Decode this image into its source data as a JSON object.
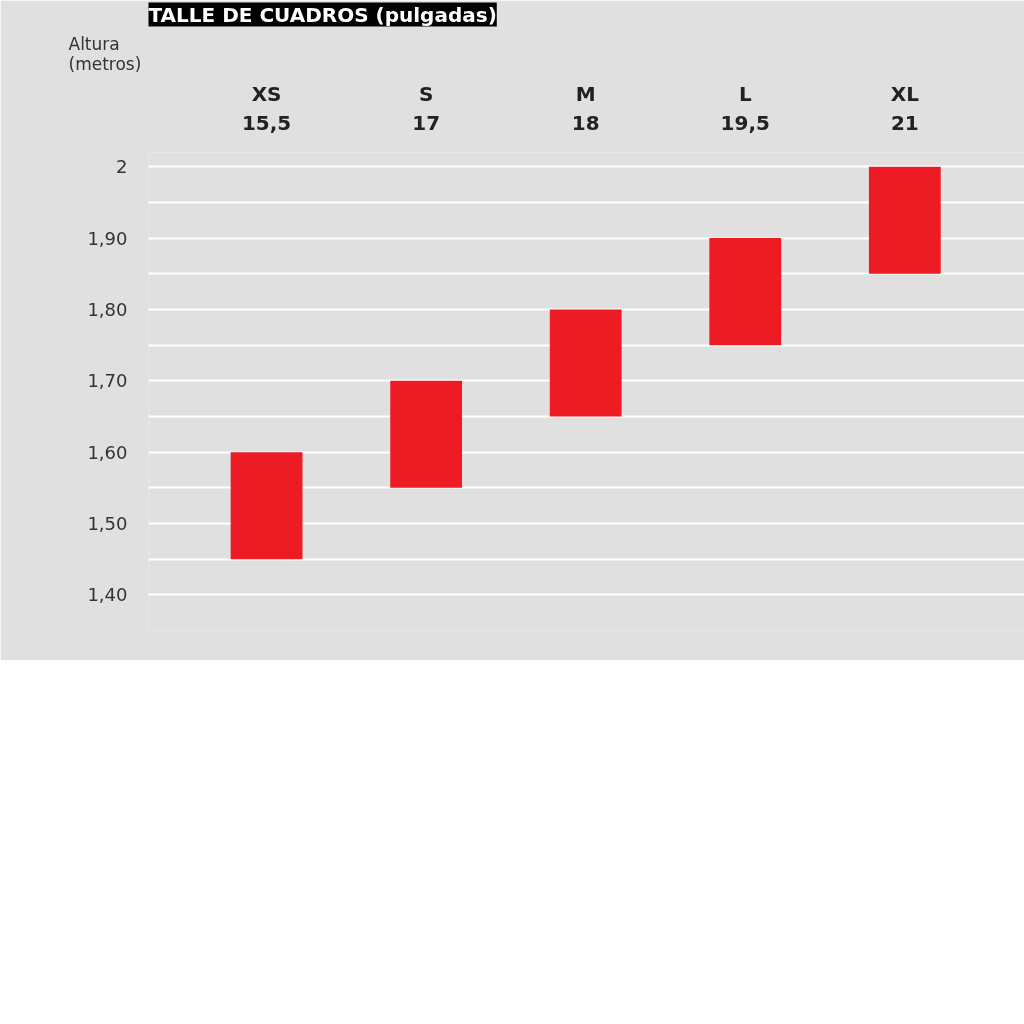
{
  "chart_data": {
    "type": "bar",
    "title": "TALLE DE CUADROS (pulgadas)",
    "ylabel": "Altura\n(metros)",
    "categories": [
      "XS\n15,5",
      "S\n17",
      "M\n18",
      "L\n19,5",
      "XL\n21"
    ],
    "base": [
      1.45,
      1.55,
      1.65,
      1.75,
      1.85
    ],
    "values": [
      0.15,
      0.15,
      0.15,
      0.15,
      0.15
    ],
    "color": "#ed1c24",
    "ylim": [
      1.35,
      2.02
    ],
    "yticks": [
      {
        "value": 1.4,
        "label": "1,40"
      },
      {
        "value": 1.45,
        "label": null
      },
      {
        "value": 1.5,
        "label": "1,50"
      },
      {
        "value": 1.55,
        "label": null
      },
      {
        "value": 1.6,
        "label": "1,60"
      },
      {
        "value": 1.65,
        "label": null
      },
      {
        "value": 1.7,
        "label": "1,70"
      },
      {
        "value": 1.75,
        "label": null
      },
      {
        "value": 1.8,
        "label": "1,80"
      },
      {
        "value": 1.85,
        "label": null
      },
      {
        "value": 1.9,
        "label": "1,90"
      },
      {
        "value": 1.95,
        "label": null
      },
      {
        "value": 2,
        "label": "2"
      }
    ],
    "grid": "y"
  }
}
